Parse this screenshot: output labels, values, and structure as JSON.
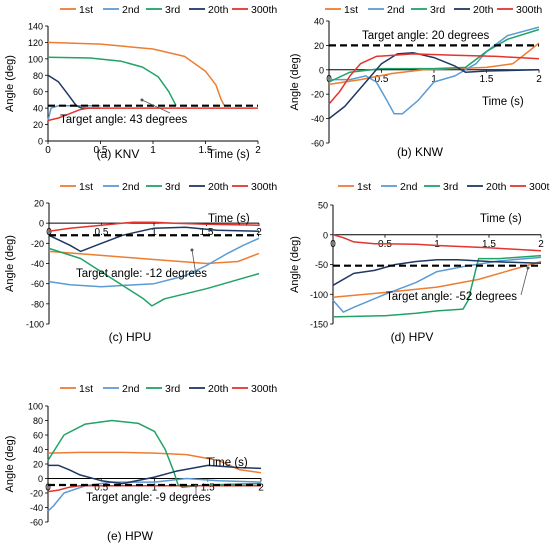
{
  "colors": {
    "1st": "#ED7D31",
    "2nd": "#5B9BD5",
    "3rd": "#21A366",
    "20th": "#1F3864",
    "300th": "#E3342F",
    "target": "#000000",
    "axis": "#000000",
    "grid": "#D9D9D9"
  },
  "legend_labels": [
    "1st",
    "2nd",
    "3rd",
    "20th",
    "300th"
  ],
  "chart_data": [
    {
      "id": "KNV",
      "type": "line",
      "caption": "(a) KNV",
      "xlabel": "Time (s)",
      "ylabel": "Angle (deg)",
      "xlim": [
        0,
        2
      ],
      "ylim": [
        0,
        140
      ],
      "xticks": [
        0,
        0.5,
        1,
        1.5,
        2
      ],
      "yticks": [
        0,
        20,
        40,
        60,
        80,
        100,
        120,
        140
      ],
      "target_value": 43,
      "target_label": "Target angle: 43 degrees",
      "series": [
        {
          "name": "1st",
          "points": [
            [
              0,
              120
            ],
            [
              0.5,
              118
            ],
            [
              1.0,
              112
            ],
            [
              1.3,
              103
            ],
            [
              1.5,
              85
            ],
            [
              1.6,
              68
            ],
            [
              1.65,
              50
            ],
            [
              1.68,
              43
            ]
          ]
        },
        {
          "name": "2nd",
          "points": [
            [
              0,
              25
            ],
            [
              0.03,
              40
            ],
            [
              0.1,
              43
            ],
            [
              0.5,
              43
            ]
          ]
        },
        {
          "name": "3rd",
          "points": [
            [
              0,
              102
            ],
            [
              0.4,
              101
            ],
            [
              0.7,
              97
            ],
            [
              0.9,
              90
            ],
            [
              1.05,
              78
            ],
            [
              1.15,
              60
            ],
            [
              1.22,
              43
            ]
          ]
        },
        {
          "name": "20th",
          "points": [
            [
              0,
              80
            ],
            [
              0.1,
              72
            ],
            [
              0.2,
              55
            ],
            [
              0.27,
              43
            ],
            [
              0.32,
              40
            ],
            [
              0.5,
              40
            ]
          ]
        },
        {
          "name": "300th",
          "points": [
            [
              0,
              25
            ],
            [
              0.1,
              28
            ],
            [
              0.2,
              33
            ],
            [
              0.3,
              38
            ],
            [
              0.38,
              40
            ],
            [
              2.0,
              40
            ]
          ]
        }
      ]
    },
    {
      "id": "KNW",
      "type": "line",
      "caption": "(b) KNW",
      "xlabel": "Time (s)",
      "ylabel": "Angle (deg)",
      "xlim": [
        0,
        2
      ],
      "ylim": [
        -60,
        40
      ],
      "xticks": [
        0,
        0.5,
        1,
        1.5,
        2
      ],
      "yticks": [
        -60,
        -40,
        -20,
        0,
        20,
        40
      ],
      "target_value": 20,
      "target_label": "Target angle: 20 degrees",
      "series": [
        {
          "name": "1st",
          "points": [
            [
              0,
              -12
            ],
            [
              0.3,
              -8
            ],
            [
              0.6,
              -3
            ],
            [
              0.9,
              0
            ],
            [
              1.2,
              1
            ],
            [
              1.5,
              2
            ],
            [
              1.75,
              5
            ],
            [
              1.9,
              15
            ],
            [
              2.0,
              22
            ]
          ]
        },
        {
          "name": "2nd",
          "points": [
            [
              0,
              -8
            ],
            [
              0.2,
              -8
            ],
            [
              0.35,
              -5
            ],
            [
              0.45,
              -10
            ],
            [
              0.55,
              -25
            ],
            [
              0.62,
              -36
            ],
            [
              0.7,
              -36
            ],
            [
              0.85,
              -25
            ],
            [
              1.0,
              -10
            ],
            [
              1.2,
              -5
            ],
            [
              1.4,
              5
            ],
            [
              1.5,
              15
            ],
            [
              1.7,
              28
            ],
            [
              2.0,
              35
            ]
          ]
        },
        {
          "name": "3rd",
          "points": [
            [
              0,
              -10
            ],
            [
              0.2,
              -2
            ],
            [
              0.5,
              1
            ],
            [
              1.0,
              1
            ],
            [
              1.3,
              2
            ],
            [
              1.5,
              15
            ],
            [
              1.7,
              25
            ],
            [
              2.0,
              33
            ]
          ]
        },
        {
          "name": "20th",
          "points": [
            [
              0,
              -40
            ],
            [
              0.15,
              -30
            ],
            [
              0.3,
              -15
            ],
            [
              0.5,
              5
            ],
            [
              0.65,
              13
            ],
            [
              0.8,
              14
            ],
            [
              1.0,
              10
            ],
            [
              1.2,
              3
            ],
            [
              1.3,
              -2
            ],
            [
              1.5,
              -1
            ],
            [
              2.0,
              0
            ]
          ]
        },
        {
          "name": "300th",
          "points": [
            [
              0,
              -28
            ],
            [
              0.1,
              -18
            ],
            [
              0.2,
              -5
            ],
            [
              0.3,
              5
            ],
            [
              0.45,
              11
            ],
            [
              0.8,
              13
            ],
            [
              1.2,
              12
            ],
            [
              1.6,
              11
            ],
            [
              2.0,
              9
            ]
          ]
        }
      ]
    },
    {
      "id": "HPU",
      "type": "line",
      "caption": "(c) HPU",
      "xlabel": "Time (s)",
      "ylabel": "Angle (deg)",
      "xlim": [
        0,
        2
      ],
      "ylim": [
        -100,
        20
      ],
      "xticks": [
        0,
        0.5,
        1,
        1.5,
        2
      ],
      "yticks": [
        -100,
        -80,
        -60,
        -40,
        -20,
        0,
        20
      ],
      "target_value": -12,
      "target_label": "Target angle: -12 degrees",
      "series": [
        {
          "name": "1st",
          "points": [
            [
              0,
              -28
            ],
            [
              0.5,
              -32
            ],
            [
              1.0,
              -36
            ],
            [
              1.5,
              -40
            ],
            [
              1.8,
              -38
            ],
            [
              2.0,
              -30
            ]
          ]
        },
        {
          "name": "2nd",
          "points": [
            [
              0,
              -58
            ],
            [
              0.2,
              -61
            ],
            [
              0.5,
              -63
            ],
            [
              1.0,
              -60
            ],
            [
              1.3,
              -52
            ],
            [
              1.5,
              -42
            ],
            [
              1.7,
              -30
            ],
            [
              1.85,
              -22
            ],
            [
              2.0,
              -15
            ]
          ]
        },
        {
          "name": "3rd",
          "points": [
            [
              0,
              -25
            ],
            [
              0.3,
              -35
            ],
            [
              0.6,
              -55
            ],
            [
              0.9,
              -75
            ],
            [
              0.98,
              -82
            ],
            [
              1.1,
              -75
            ],
            [
              1.5,
              -65
            ],
            [
              2.0,
              -50
            ]
          ]
        },
        {
          "name": "20th",
          "points": [
            [
              0,
              -12
            ],
            [
              0.2,
              -22
            ],
            [
              0.3,
              -28
            ],
            [
              0.45,
              -22
            ],
            [
              0.7,
              -12
            ],
            [
              1.0,
              -5
            ],
            [
              1.3,
              -4
            ],
            [
              1.6,
              -7
            ],
            [
              2.0,
              -8
            ]
          ]
        },
        {
          "name": "300th",
          "points": [
            [
              0,
              -8
            ],
            [
              0.2,
              -5
            ],
            [
              0.5,
              -2
            ],
            [
              0.8,
              1
            ],
            [
              1.0,
              1
            ],
            [
              1.2,
              0
            ],
            [
              1.5,
              -1
            ],
            [
              2.0,
              -2
            ]
          ]
        }
      ]
    },
    {
      "id": "HPV",
      "type": "line",
      "caption": "(d) HPV",
      "xlabel": "Time (s)",
      "ylabel": "Angle (deg)",
      "xlim": [
        0,
        2
      ],
      "ylim": [
        -150,
        50
      ],
      "xticks": [
        0,
        0.5,
        1,
        1.5,
        2
      ],
      "yticks": [
        -150,
        -100,
        -50,
        0,
        50
      ],
      "target_value": -52,
      "target_label": "Target angle: -52 degrees",
      "series": [
        {
          "name": "1st",
          "points": [
            [
              0,
              -105
            ],
            [
              0.5,
              -97
            ],
            [
              1.0,
              -88
            ],
            [
              1.4,
              -75
            ],
            [
              1.7,
              -60
            ],
            [
              1.9,
              -50
            ],
            [
              2.0,
              -45
            ]
          ]
        },
        {
          "name": "2nd",
          "points": [
            [
              0,
              -110
            ],
            [
              0.1,
              -130
            ],
            [
              0.2,
              -122
            ],
            [
              0.5,
              -100
            ],
            [
              0.8,
              -80
            ],
            [
              1.0,
              -62
            ],
            [
              1.3,
              -52
            ],
            [
              1.6,
              -44
            ],
            [
              2.0,
              -38
            ]
          ]
        },
        {
          "name": "3rd",
          "points": [
            [
              0,
              -138
            ],
            [
              0.5,
              -136
            ],
            [
              0.8,
              -132
            ],
            [
              1.0,
              -128
            ],
            [
              1.25,
              -125
            ],
            [
              1.3,
              -110
            ],
            [
              1.4,
              -40
            ],
            [
              1.6,
              -40
            ],
            [
              2.0,
              -35
            ]
          ]
        },
        {
          "name": "20th",
          "points": [
            [
              0,
              -85
            ],
            [
              0.2,
              -65
            ],
            [
              0.4,
              -60
            ],
            [
              0.6,
              -50
            ],
            [
              0.8,
              -45
            ],
            [
              1.0,
              -42
            ],
            [
              1.2,
              -42
            ],
            [
              1.5,
              -45
            ],
            [
              2.0,
              -48
            ]
          ]
        },
        {
          "name": "300th",
          "points": [
            [
              0,
              0
            ],
            [
              0.1,
              -5
            ],
            [
              0.2,
              -12
            ],
            [
              0.4,
              -15
            ],
            [
              0.8,
              -16
            ],
            [
              1.0,
              -18
            ],
            [
              1.5,
              -22
            ],
            [
              2.0,
              -27
            ]
          ]
        }
      ]
    },
    {
      "id": "HPW",
      "type": "line",
      "caption": "(e) HPW",
      "xlabel": "Time (s)",
      "ylabel": "Angle (deg)",
      "xlim": [
        0,
        2
      ],
      "ylim": [
        -60,
        100
      ],
      "xticks": [
        0,
        0.5,
        1,
        1.5,
        2
      ],
      "yticks": [
        -60,
        -40,
        -20,
        0,
        20,
        40,
        60,
        80,
        100
      ],
      "target_value": -9,
      "target_label": "Target angle: -9 degrees",
      "series": [
        {
          "name": "1st",
          "points": [
            [
              0,
              35
            ],
            [
              0.3,
              36
            ],
            [
              0.7,
              36
            ],
            [
              1.0,
              35
            ],
            [
              1.3,
              33
            ],
            [
              1.6,
              25
            ],
            [
              1.8,
              12
            ],
            [
              2.0,
              8
            ]
          ]
        },
        {
          "name": "2nd",
          "points": [
            [
              0,
              -45
            ],
            [
              0.05,
              -38
            ],
            [
              0.15,
              -20
            ],
            [
              0.35,
              -10
            ],
            [
              0.6,
              -5
            ],
            [
              1.0,
              -5
            ],
            [
              1.3,
              0
            ],
            [
              1.6,
              -3
            ],
            [
              2.0,
              -5
            ]
          ]
        },
        {
          "name": "3rd",
          "points": [
            [
              0,
              25
            ],
            [
              0.15,
              60
            ],
            [
              0.35,
              75
            ],
            [
              0.6,
              80
            ],
            [
              0.85,
              76
            ],
            [
              1.0,
              65
            ],
            [
              1.1,
              40
            ],
            [
              1.18,
              10
            ],
            [
              1.22,
              -8
            ],
            [
              1.26,
              -12
            ],
            [
              1.4,
              -10
            ],
            [
              1.7,
              -8
            ],
            [
              2.0,
              -7
            ]
          ]
        },
        {
          "name": "20th",
          "points": [
            [
              0,
              18
            ],
            [
              0.1,
              18
            ],
            [
              0.2,
              12
            ],
            [
              0.3,
              5
            ],
            [
              0.5,
              -3
            ],
            [
              0.7,
              -7
            ],
            [
              1.0,
              2
            ],
            [
              1.2,
              10
            ],
            [
              1.5,
              18
            ],
            [
              1.8,
              15
            ],
            [
              2.0,
              14
            ]
          ]
        },
        {
          "name": "300th",
          "points": [
            [
              0,
              -18
            ],
            [
              0.1,
              -16
            ],
            [
              0.2,
              -12
            ],
            [
              0.3,
              -10
            ],
            [
              1.0,
              -10
            ],
            [
              1.5,
              -10
            ],
            [
              2.0,
              -10
            ]
          ]
        }
      ]
    }
  ]
}
